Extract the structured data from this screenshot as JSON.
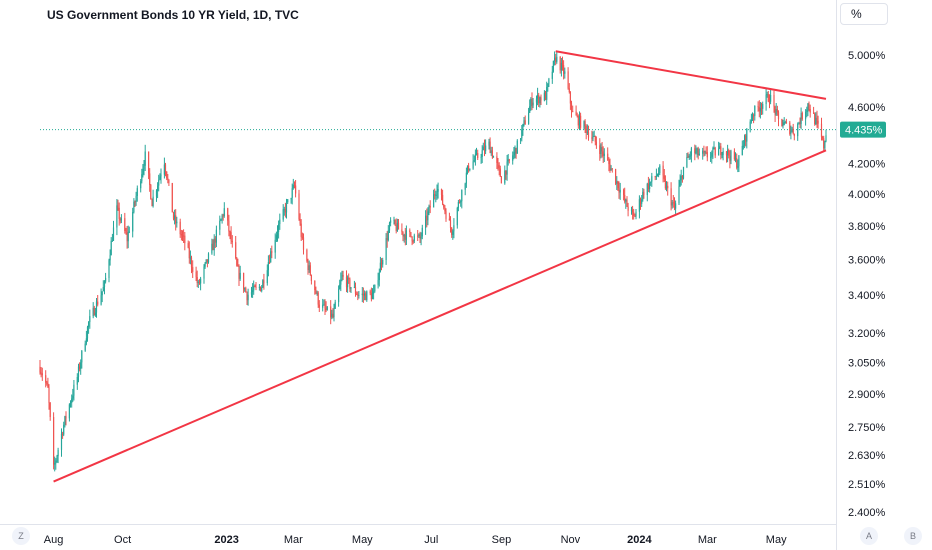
{
  "title": "US Government Bonds 10 YR Yield, 1D, TVC",
  "scale_button": "%",
  "last_price_label": "4.435%",
  "corner_left": "Z",
  "corner_axis": "A",
  "corner_right": "B",
  "colors": {
    "up": "#26a69a",
    "down": "#ef5350",
    "trendline": "#f23645",
    "last_price": "#22ab94"
  },
  "chart_data": {
    "type": "candlestick",
    "title": "US Government Bonds 10 YR Yield, 1D, TVC",
    "y_scale": "log",
    "y_unit": "%",
    "ylim": [
      2.35,
      5.35
    ],
    "y_ticks": [
      "5.000%",
      "4.600%",
      "4.200%",
      "4.000%",
      "3.800%",
      "3.600%",
      "3.400%",
      "3.200%",
      "3.050%",
      "2.900%",
      "2.750%",
      "2.630%",
      "2.510%",
      "2.400%"
    ],
    "x_ticks": [
      {
        "label": "Aug",
        "date": "2022-08-01",
        "bold": false
      },
      {
        "label": "Oct",
        "date": "2022-10-01",
        "bold": false
      },
      {
        "label": "2023",
        "date": "2023-01-01",
        "bold": true
      },
      {
        "label": "Mar",
        "date": "2023-03-01",
        "bold": false
      },
      {
        "label": "May",
        "date": "2023-05-01",
        "bold": false
      },
      {
        "label": "Jul",
        "date": "2023-07-01",
        "bold": false
      },
      {
        "label": "Sep",
        "date": "2023-09-01",
        "bold": false
      },
      {
        "label": "Nov",
        "date": "2023-11-01",
        "bold": false
      },
      {
        "label": "2024",
        "date": "2024-01-01",
        "bold": true
      },
      {
        "label": "Mar",
        "date": "2024-03-01",
        "bold": false
      },
      {
        "label": "May",
        "date": "2024-05-01",
        "bold": false
      }
    ],
    "last_price": 4.435,
    "grid": false,
    "path": [
      [
        "2022-07-20",
        3.03
      ],
      [
        "2022-07-27",
        2.92
      ],
      [
        "2022-08-01",
        2.57
      ],
      [
        "2022-08-10",
        2.76
      ],
      [
        "2022-08-22",
        2.98
      ],
      [
        "2022-09-01",
        3.25
      ],
      [
        "2022-09-15",
        3.45
      ],
      [
        "2022-09-26",
        3.9
      ],
      [
        "2022-10-05",
        3.72
      ],
      [
        "2022-10-21",
        4.25
      ],
      [
        "2022-10-27",
        3.95
      ],
      [
        "2022-11-07",
        4.22
      ],
      [
        "2022-11-15",
        3.85
      ],
      [
        "2022-11-25",
        3.7
      ],
      [
        "2022-12-07",
        3.45
      ],
      [
        "2022-12-20",
        3.68
      ],
      [
        "2022-12-30",
        3.9
      ],
      [
        "2023-01-10",
        3.55
      ],
      [
        "2023-01-19",
        3.4
      ],
      [
        "2023-02-01",
        3.45
      ],
      [
        "2023-02-15",
        3.78
      ],
      [
        "2023-03-02",
        4.05
      ],
      [
        "2023-03-10",
        3.65
      ],
      [
        "2023-03-24",
        3.35
      ],
      [
        "2023-04-05",
        3.28
      ],
      [
        "2023-04-13",
        3.5
      ],
      [
        "2023-04-28",
        3.4
      ],
      [
        "2023-05-11",
        3.4
      ],
      [
        "2023-05-26",
        3.82
      ],
      [
        "2023-06-07",
        3.75
      ],
      [
        "2023-06-21",
        3.72
      ],
      [
        "2023-07-06",
        4.05
      ],
      [
        "2023-07-19",
        3.77
      ],
      [
        "2023-08-03",
        4.18
      ],
      [
        "2023-08-21",
        4.33
      ],
      [
        "2023-09-01",
        4.1
      ],
      [
        "2023-09-15",
        4.32
      ],
      [
        "2023-09-28",
        4.65
      ],
      [
        "2023-10-10",
        4.68
      ],
      [
        "2023-10-19",
        4.98
      ],
      [
        "2023-10-27",
        4.85
      ],
      [
        "2023-11-03",
        4.55
      ],
      [
        "2023-11-14",
        4.45
      ],
      [
        "2023-11-29",
        4.28
      ],
      [
        "2023-12-08",
        4.15
      ],
      [
        "2023-12-19",
        3.95
      ],
      [
        "2023-12-27",
        3.85
      ],
      [
        "2024-01-05",
        4.02
      ],
      [
        "2024-01-19",
        4.15
      ],
      [
        "2024-02-01",
        3.9
      ],
      [
        "2024-02-09",
        4.17
      ],
      [
        "2024-02-16",
        4.28
      ],
      [
        "2024-02-29",
        4.25
      ],
      [
        "2024-03-15",
        4.3
      ],
      [
        "2024-03-28",
        4.2
      ],
      [
        "2024-04-10",
        4.55
      ],
      [
        "2024-04-25",
        4.68
      ],
      [
        "2024-05-03",
        4.5
      ],
      [
        "2024-05-17",
        4.42
      ],
      [
        "2024-05-29",
        4.62
      ],
      [
        "2024-06-07",
        4.45
      ],
      [
        "2024-06-12",
        4.32
      ],
      [
        "2024-06-14",
        4.42
      ]
    ],
    "trendlines": [
      {
        "color": "#f23645",
        "from": [
          "2022-08-01",
          2.52
        ],
        "to": [
          "2024-06-14",
          4.29
        ]
      },
      {
        "color": "#f23645",
        "from": [
          "2023-10-19",
          5.03
        ],
        "to": [
          "2024-06-14",
          4.66
        ]
      }
    ]
  }
}
